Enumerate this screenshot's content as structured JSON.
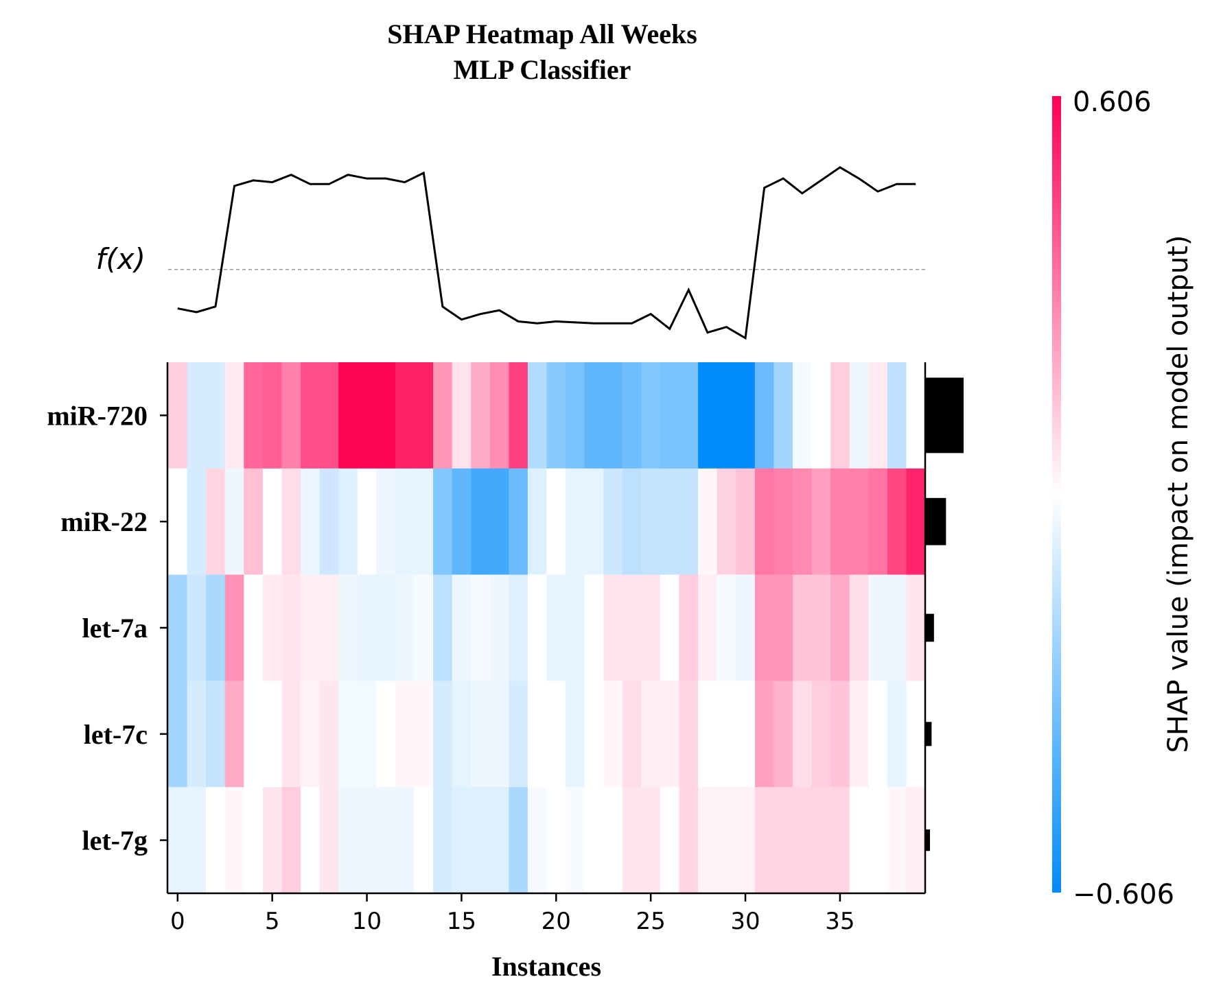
{
  "chart_data": {
    "type": "heatmap",
    "title": "SHAP Heatmap All Weeks",
    "subtitle": "MLP Classifier",
    "xlabel": "Instances",
    "fx_label": "f(x)",
    "colorbar_label": "SHAP value (impact on model output)",
    "colorbar_max_label": "0.606",
    "colorbar_min_label": "−0.606",
    "vmin": -0.606,
    "vmax": 0.606,
    "xlim": [
      -0.5,
      39.5
    ],
    "x_ticks": [
      0,
      5,
      10,
      15,
      20,
      25,
      30,
      35
    ],
    "x_tick_labels": [
      "0",
      "5",
      "10",
      "15",
      "20",
      "25",
      "30",
      "35"
    ],
    "features": [
      "miR-720",
      "miR-22",
      "let-7a",
      "let-7c",
      "let-7g"
    ],
    "importance": [
      0.48,
      0.26,
      0.11,
      0.08,
      0.06
    ],
    "fx_baseline": 0.5,
    "fx_ylim": [
      0.0,
      1.12
    ],
    "fx": [
      0.29,
      0.27,
      0.3,
      0.95,
      0.98,
      0.97,
      1.01,
      0.96,
      0.96,
      1.01,
      0.99,
      0.99,
      0.97,
      1.02,
      0.3,
      0.23,
      0.26,
      0.28,
      0.22,
      0.21,
      0.22,
      0.215,
      0.21,
      0.21,
      0.21,
      0.26,
      0.18,
      0.39,
      0.16,
      0.19,
      0.13,
      0.94,
      0.99,
      0.91,
      0.98,
      1.05,
      0.99,
      0.92,
      0.96,
      0.96
    ],
    "shap_values": [
      [
        0.12,
        -0.1,
        -0.1,
        0.05,
        0.36,
        0.38,
        0.3,
        0.42,
        0.42,
        0.6,
        0.6,
        0.6,
        0.53,
        0.53,
        0.25,
        0.07,
        0.2,
        0.27,
        0.45,
        -0.18,
        -0.28,
        -0.32,
        -0.38,
        -0.38,
        -0.34,
        -0.3,
        -0.32,
        -0.32,
        -0.6,
        -0.6,
        -0.6,
        -0.35,
        -0.22,
        -0.02,
        0.0,
        0.12,
        -0.04,
        0.05,
        -0.15,
        0.0
      ],
      [
        0.0,
        -0.1,
        0.1,
        -0.04,
        0.15,
        0.0,
        0.08,
        -0.05,
        -0.12,
        -0.08,
        0.0,
        -0.04,
        -0.06,
        -0.06,
        -0.3,
        -0.38,
        -0.45,
        -0.45,
        -0.35,
        -0.08,
        0.0,
        -0.06,
        -0.06,
        -0.12,
        -0.16,
        -0.14,
        -0.14,
        -0.14,
        0.02,
        0.11,
        0.14,
        0.32,
        0.3,
        0.28,
        0.23,
        0.3,
        0.3,
        0.33,
        0.44,
        0.52
      ],
      [
        -0.22,
        -0.12,
        -0.2,
        0.26,
        0.0,
        0.05,
        0.06,
        0.04,
        0.04,
        -0.04,
        -0.06,
        -0.06,
        -0.04,
        -0.02,
        -0.16,
        -0.04,
        -0.02,
        -0.04,
        -0.08,
        0.0,
        -0.06,
        -0.06,
        0.0,
        0.06,
        0.06,
        0.06,
        0.0,
        0.12,
        0.04,
        -0.02,
        -0.04,
        0.25,
        0.25,
        0.14,
        0.14,
        0.2,
        0.08,
        -0.04,
        -0.04,
        0.06
      ],
      [
        -0.22,
        -0.1,
        -0.14,
        0.2,
        0.0,
        0.0,
        0.06,
        0.03,
        0.06,
        -0.03,
        -0.03,
        0.0,
        0.02,
        0.02,
        -0.1,
        -0.06,
        -0.04,
        -0.04,
        -0.1,
        0.0,
        0.0,
        -0.06,
        0.0,
        0.02,
        0.08,
        0.04,
        0.04,
        0.1,
        0.0,
        0.0,
        0.0,
        0.22,
        0.18,
        0.08,
        0.12,
        0.14,
        0.04,
        0.0,
        -0.06,
        0.0
      ],
      [
        -0.06,
        -0.06,
        0.0,
        0.02,
        0.0,
        0.06,
        0.12,
        0.0,
        0.06,
        -0.04,
        -0.04,
        -0.04,
        -0.04,
        0.0,
        -0.1,
        -0.08,
        -0.08,
        -0.08,
        -0.2,
        -0.02,
        0.0,
        -0.02,
        0.0,
        0.0,
        0.06,
        0.06,
        0.0,
        0.1,
        0.03,
        0.03,
        0.03,
        0.1,
        0.1,
        0.1,
        0.1,
        0.1,
        0.0,
        0.0,
        0.02,
        0.04
      ]
    ]
  }
}
